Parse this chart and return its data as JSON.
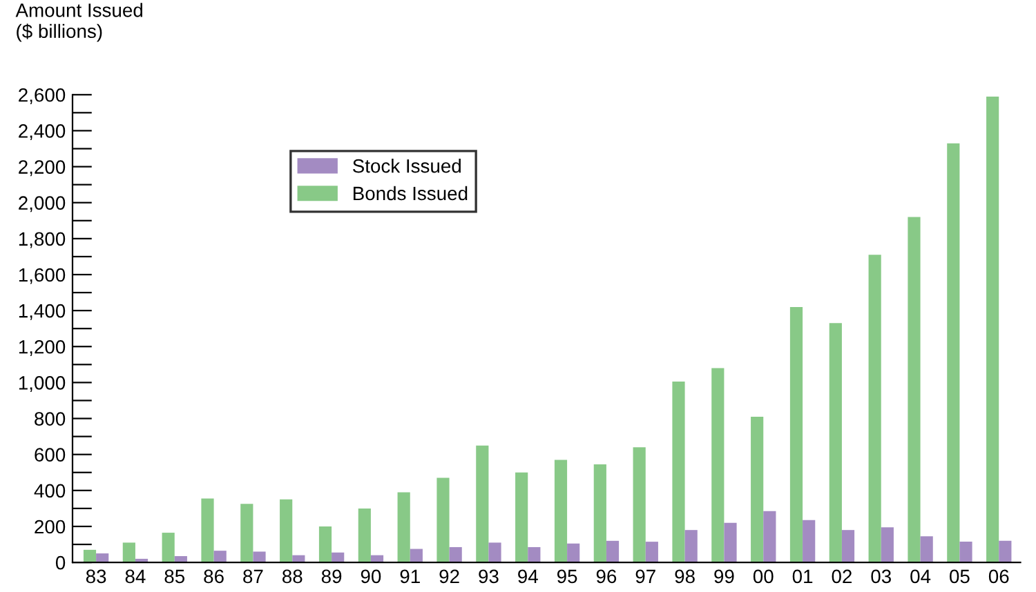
{
  "chart_data": {
    "type": "bar",
    "ylabel": "Amount Issued\n($ billions)",
    "categories": [
      "83",
      "84",
      "85",
      "86",
      "87",
      "88",
      "89",
      "90",
      "91",
      "92",
      "93",
      "94",
      "95",
      "96",
      "97",
      "98",
      "99",
      "00",
      "01",
      "02",
      "03",
      "04",
      "05",
      "06"
    ],
    "series": [
      {
        "name": "Bonds Issued",
        "color": "#88c987",
        "values": [
          70,
          110,
          165,
          355,
          325,
          350,
          200,
          300,
          390,
          470,
          650,
          500,
          570,
          545,
          640,
          1005,
          1080,
          810,
          1420,
          1330,
          1710,
          1920,
          2330,
          2590
        ]
      },
      {
        "name": "Stock Issued",
        "color": "#a38bc2",
        "values": [
          50,
          20,
          35,
          65,
          60,
          40,
          55,
          40,
          75,
          85,
          110,
          85,
          105,
          120,
          115,
          180,
          220,
          285,
          235,
          180,
          195,
          145,
          115,
          120
        ]
      }
    ],
    "ylim": [
      0,
      2600
    ],
    "yticks": [
      0,
      {
        "value": 100,
        "label": null
      },
      200,
      {
        "value": 300,
        "label": null
      },
      400,
      {
        "value": 500,
        "label": null
      },
      600,
      {
        "value": 700,
        "label": null
      },
      800,
      {
        "value": 900,
        "label": null
      },
      {
        "value": 1000,
        "label": "1,000"
      },
      {
        "value": 1100,
        "label": null
      },
      {
        "value": 1200,
        "label": "1,200"
      },
      {
        "value": 1300,
        "label": null
      },
      {
        "value": 1400,
        "label": "1,400"
      },
      {
        "value": 1500,
        "label": null
      },
      {
        "value": 1600,
        "label": "1,600"
      },
      {
        "value": 1700,
        "label": null
      },
      {
        "value": 1800,
        "label": "1,800"
      },
      {
        "value": 1900,
        "label": null
      },
      {
        "value": 2000,
        "label": "2,000"
      },
      {
        "value": 2100,
        "label": null
      },
      {
        "value": 2200,
        "label": "2,200"
      },
      {
        "value": 2300,
        "label": null
      },
      {
        "value": 2400,
        "label": "2,400"
      },
      {
        "value": 2500,
        "label": null
      },
      {
        "value": 2600,
        "label": "2,600"
      }
    ],
    "grid": false,
    "legend": "top left"
  }
}
